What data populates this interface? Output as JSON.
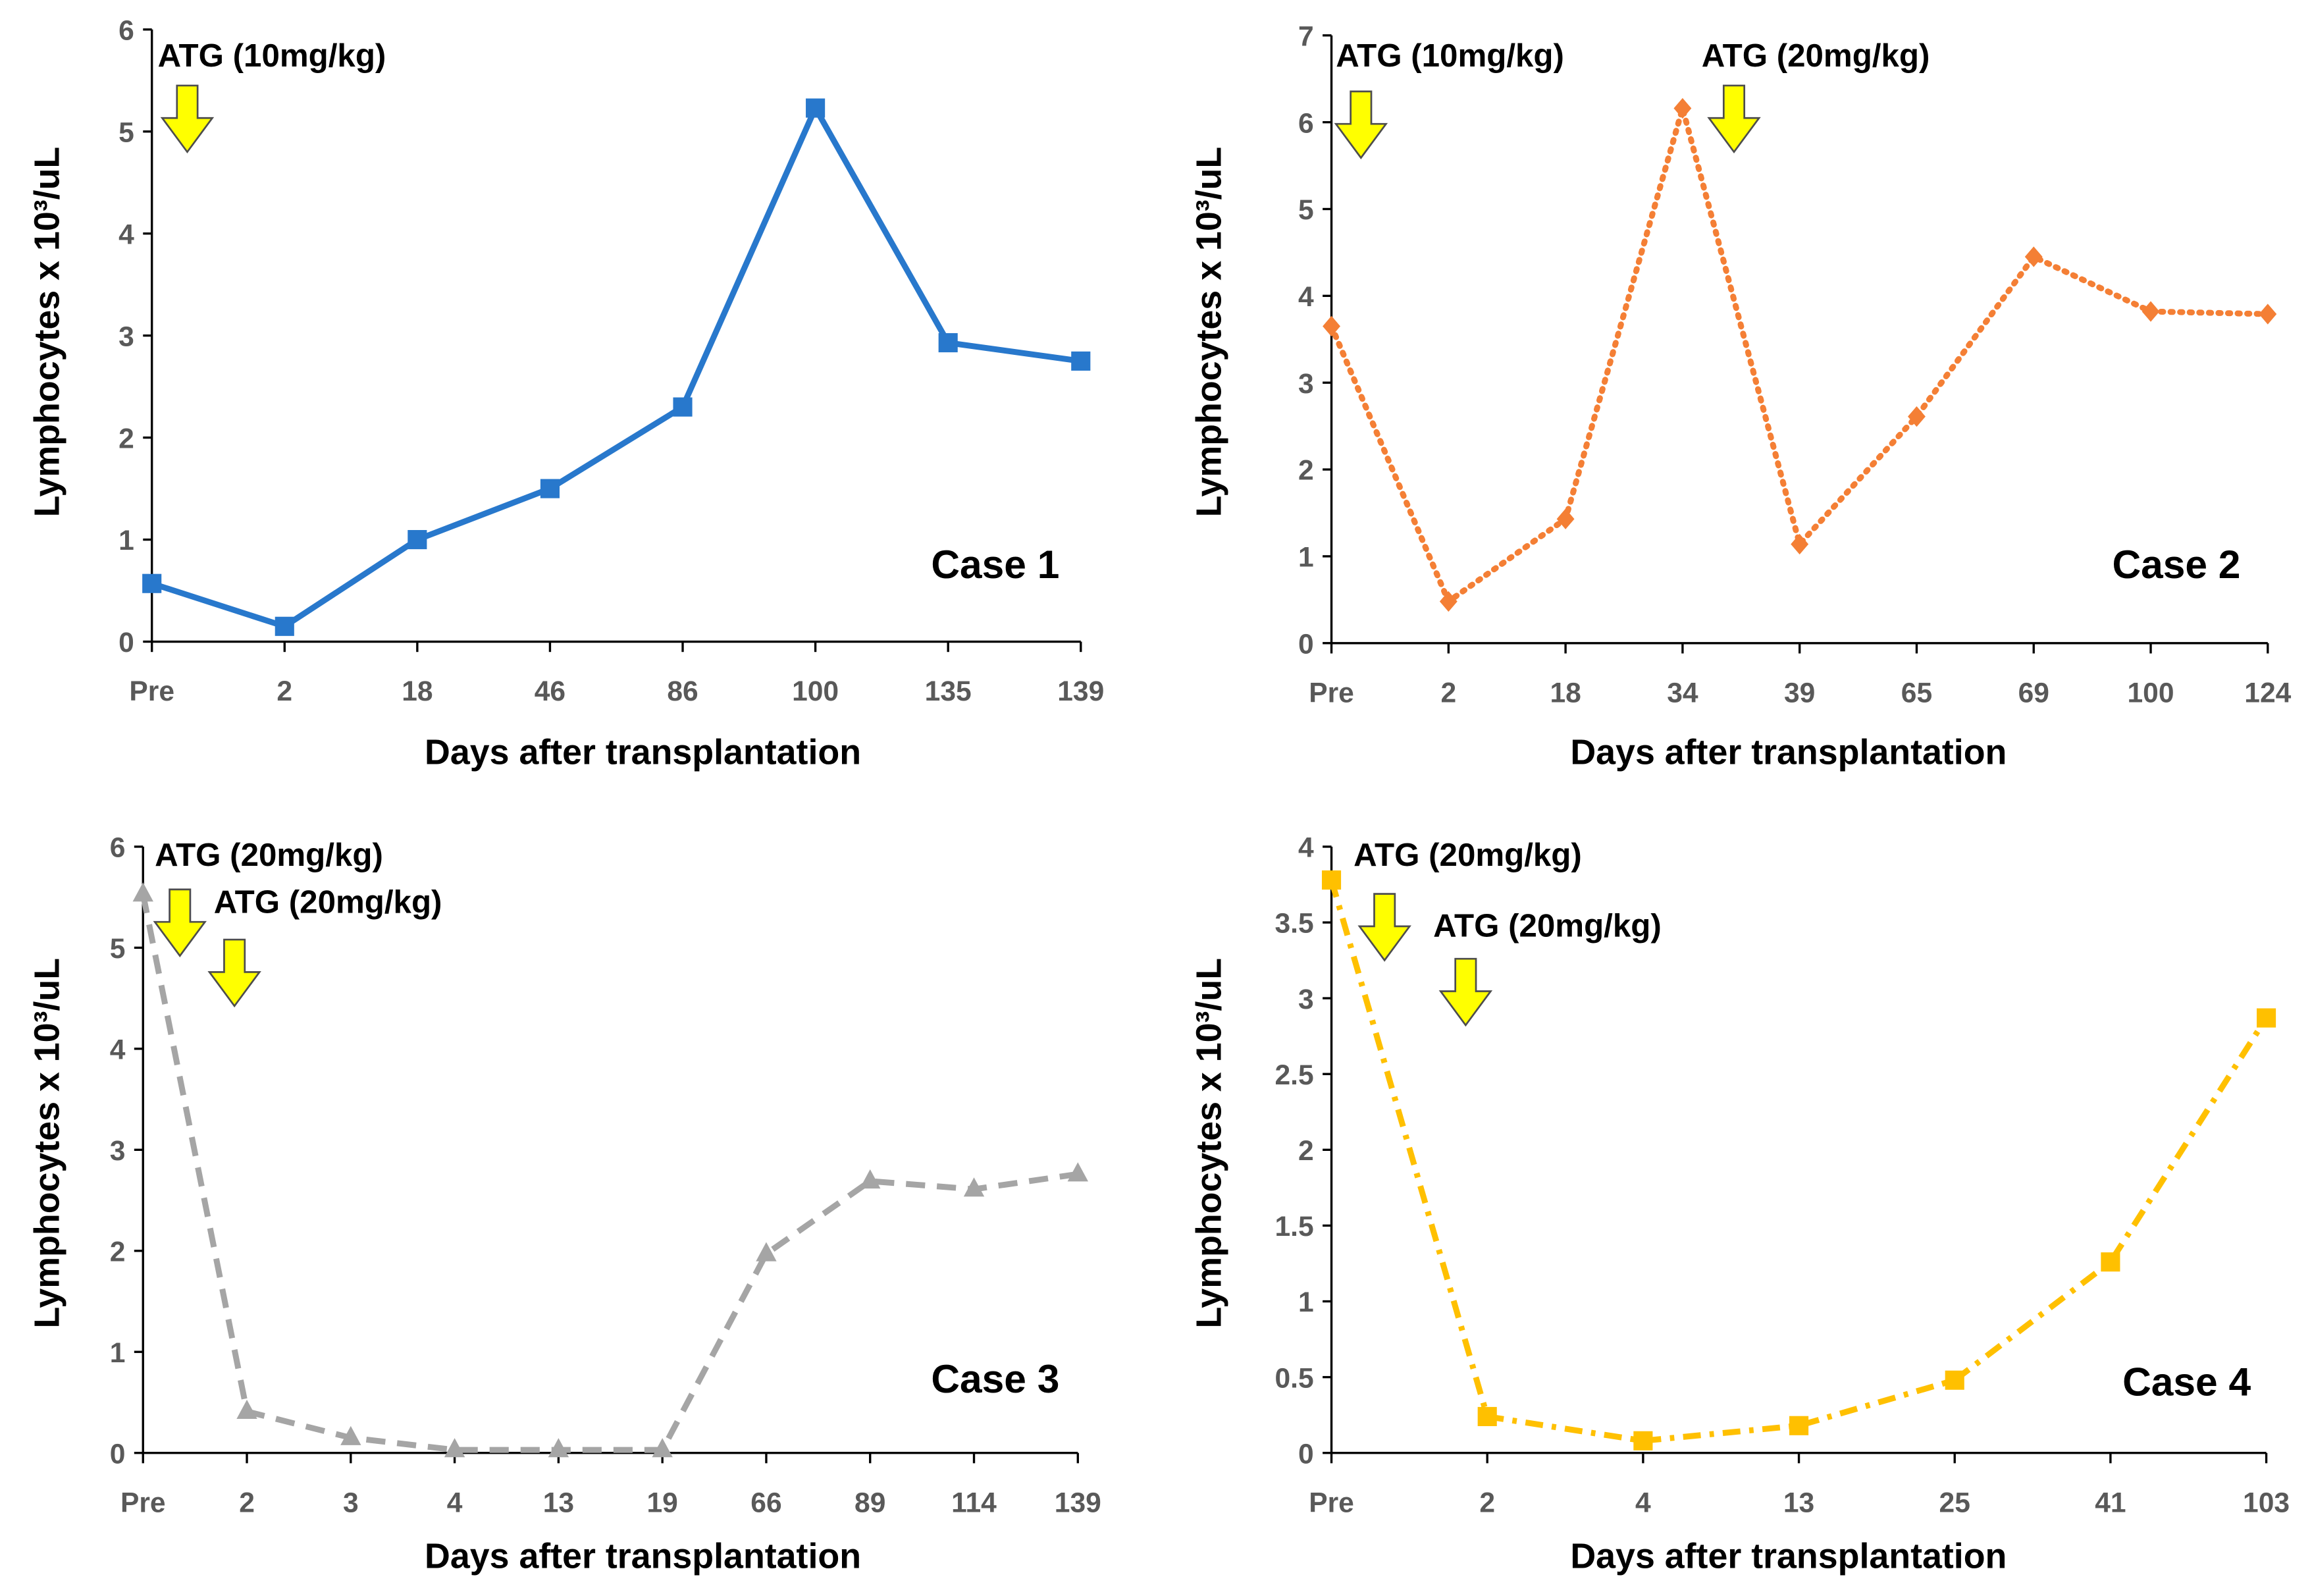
{
  "chart_data": [
    {
      "type": "line",
      "title": "Case 1",
      "xlabel": "Days after transplantation",
      "ylabel": "Lymphocytes x 10³/uL",
      "categories": [
        "Pre",
        "2",
        "18",
        "46",
        "86",
        "100",
        "135",
        "139"
      ],
      "values": [
        0.57,
        0.15,
        1.0,
        1.5,
        2.3,
        5.23,
        2.93,
        2.75
      ],
      "ylim": [
        0,
        6
      ],
      "ytick_step": 1,
      "color": "#2878CC",
      "line_style": "solid",
      "marker": "square",
      "annotations": [
        "ATG (10mg/kg)"
      ]
    },
    {
      "type": "line",
      "title": "Case 2",
      "xlabel": "Days after transplantation",
      "ylabel": "Lymphocytes x 10³/uL",
      "categories": [
        "Pre",
        "2",
        "18",
        "34",
        "39",
        "65",
        "69",
        "100",
        "124"
      ],
      "values": [
        3.65,
        0.48,
        1.43,
        6.16,
        1.14,
        2.61,
        4.45,
        3.82,
        3.79
      ],
      "ylim": [
        0,
        7
      ],
      "ytick_step": 1,
      "color": "#F47F35",
      "line_style": "dotted",
      "marker": "diamond",
      "annotations": [
        "ATG (10mg/kg)",
        "ATG (20mg/kg)"
      ]
    },
    {
      "type": "line",
      "title": "Case 3",
      "xlabel": "Days after transplantation",
      "ylabel": "Lymphocytes x 10³/uL",
      "categories": [
        "Pre",
        "2",
        "3",
        "4",
        "13",
        "19",
        "66",
        "89",
        "114",
        "139"
      ],
      "values": [
        5.53,
        0.41,
        0.15,
        0.03,
        0.03,
        0.03,
        1.97,
        2.69,
        2.61,
        2.76
      ],
      "ylim": [
        0,
        6
      ],
      "ytick_step": 1,
      "color": "#A5A5A5",
      "line_style": "dashed",
      "marker": "triangle",
      "annotations": [
        "ATG (20mg/kg)",
        "ATG (20mg/kg)"
      ]
    },
    {
      "type": "line",
      "title": "Case 4",
      "xlabel": "Days after transplantation",
      "ylabel": "Lymphocytes x 10³/uL",
      "categories": [
        "Pre",
        "2",
        "4",
        "13",
        "25",
        "41",
        "103"
      ],
      "values": [
        3.78,
        0.24,
        0.08,
        0.18,
        0.48,
        1.26,
        2.87
      ],
      "ylim": [
        0,
        4
      ],
      "ytick_step": 0.5,
      "color": "#FFC000",
      "line_style": "dash-dot",
      "marker": "square",
      "annotations": [
        "ATG (20mg/kg)",
        "ATG (20mg/kg)"
      ]
    }
  ]
}
